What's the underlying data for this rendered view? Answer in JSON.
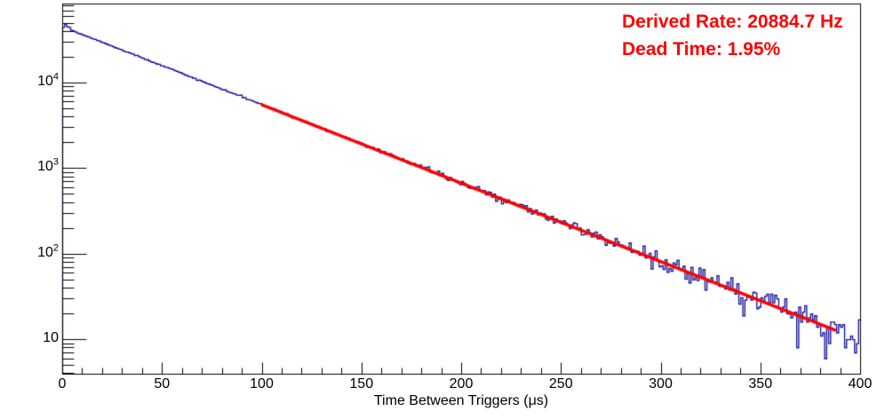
{
  "chart_data": {
    "type": "histogram",
    "title": "",
    "x_label": "Time Between Triggers (μs)",
    "x_range": [
      0,
      400
    ],
    "x_major_tick_step": 50,
    "x_minor_tick_step": 10,
    "x_tick_labels": [
      "0",
      "50",
      "100",
      "150",
      "200",
      "250",
      "300",
      "350",
      "400"
    ],
    "y_scale": "log",
    "y_range": [
      3.95,
      84000
    ],
    "y_major_ticks": [
      10,
      100,
      1000,
      10000
    ],
    "y_tick_labels": [
      "10",
      "10^2",
      "10^3",
      "10^4"
    ],
    "grid": false,
    "legend_position": "none",
    "histogram": {
      "series_name": "time-between-triggers-histogram",
      "color": "#0d0d96",
      "bin_width_us": 1,
      "first_bins": [
        45000,
        49000,
        45500,
        44800
      ],
      "exponential": {
        "amplitude": 45500,
        "tau_us": 47.6
      },
      "noise": "poisson",
      "noise_seed": 42,
      "sampled_points": [
        [
          2,
          49000
        ],
        [
          10,
          37000
        ],
        [
          50,
          16000
        ],
        [
          100,
          5550
        ],
        [
          150,
          1940
        ],
        [
          200,
          680
        ],
        [
          250,
          240
        ],
        [
          300,
          83
        ],
        [
          350,
          29
        ],
        [
          387,
          13
        ],
        [
          400,
          10
        ]
      ]
    },
    "fit": {
      "series_name": "exponential-fit",
      "color": "#ff0000",
      "x_start": 100,
      "x_end": 387,
      "y_start": 5550,
      "y_end": 13,
      "line_width": 3.5
    },
    "annotations": [
      {
        "text": "Derived Rate: 20884.7 Hz",
        "color": "#ff0000"
      },
      {
        "text": "Dead Time: 1.95%",
        "color": "#ff0000"
      }
    ]
  },
  "frame": {
    "background": "#ffffff",
    "border_color": "#000000"
  }
}
